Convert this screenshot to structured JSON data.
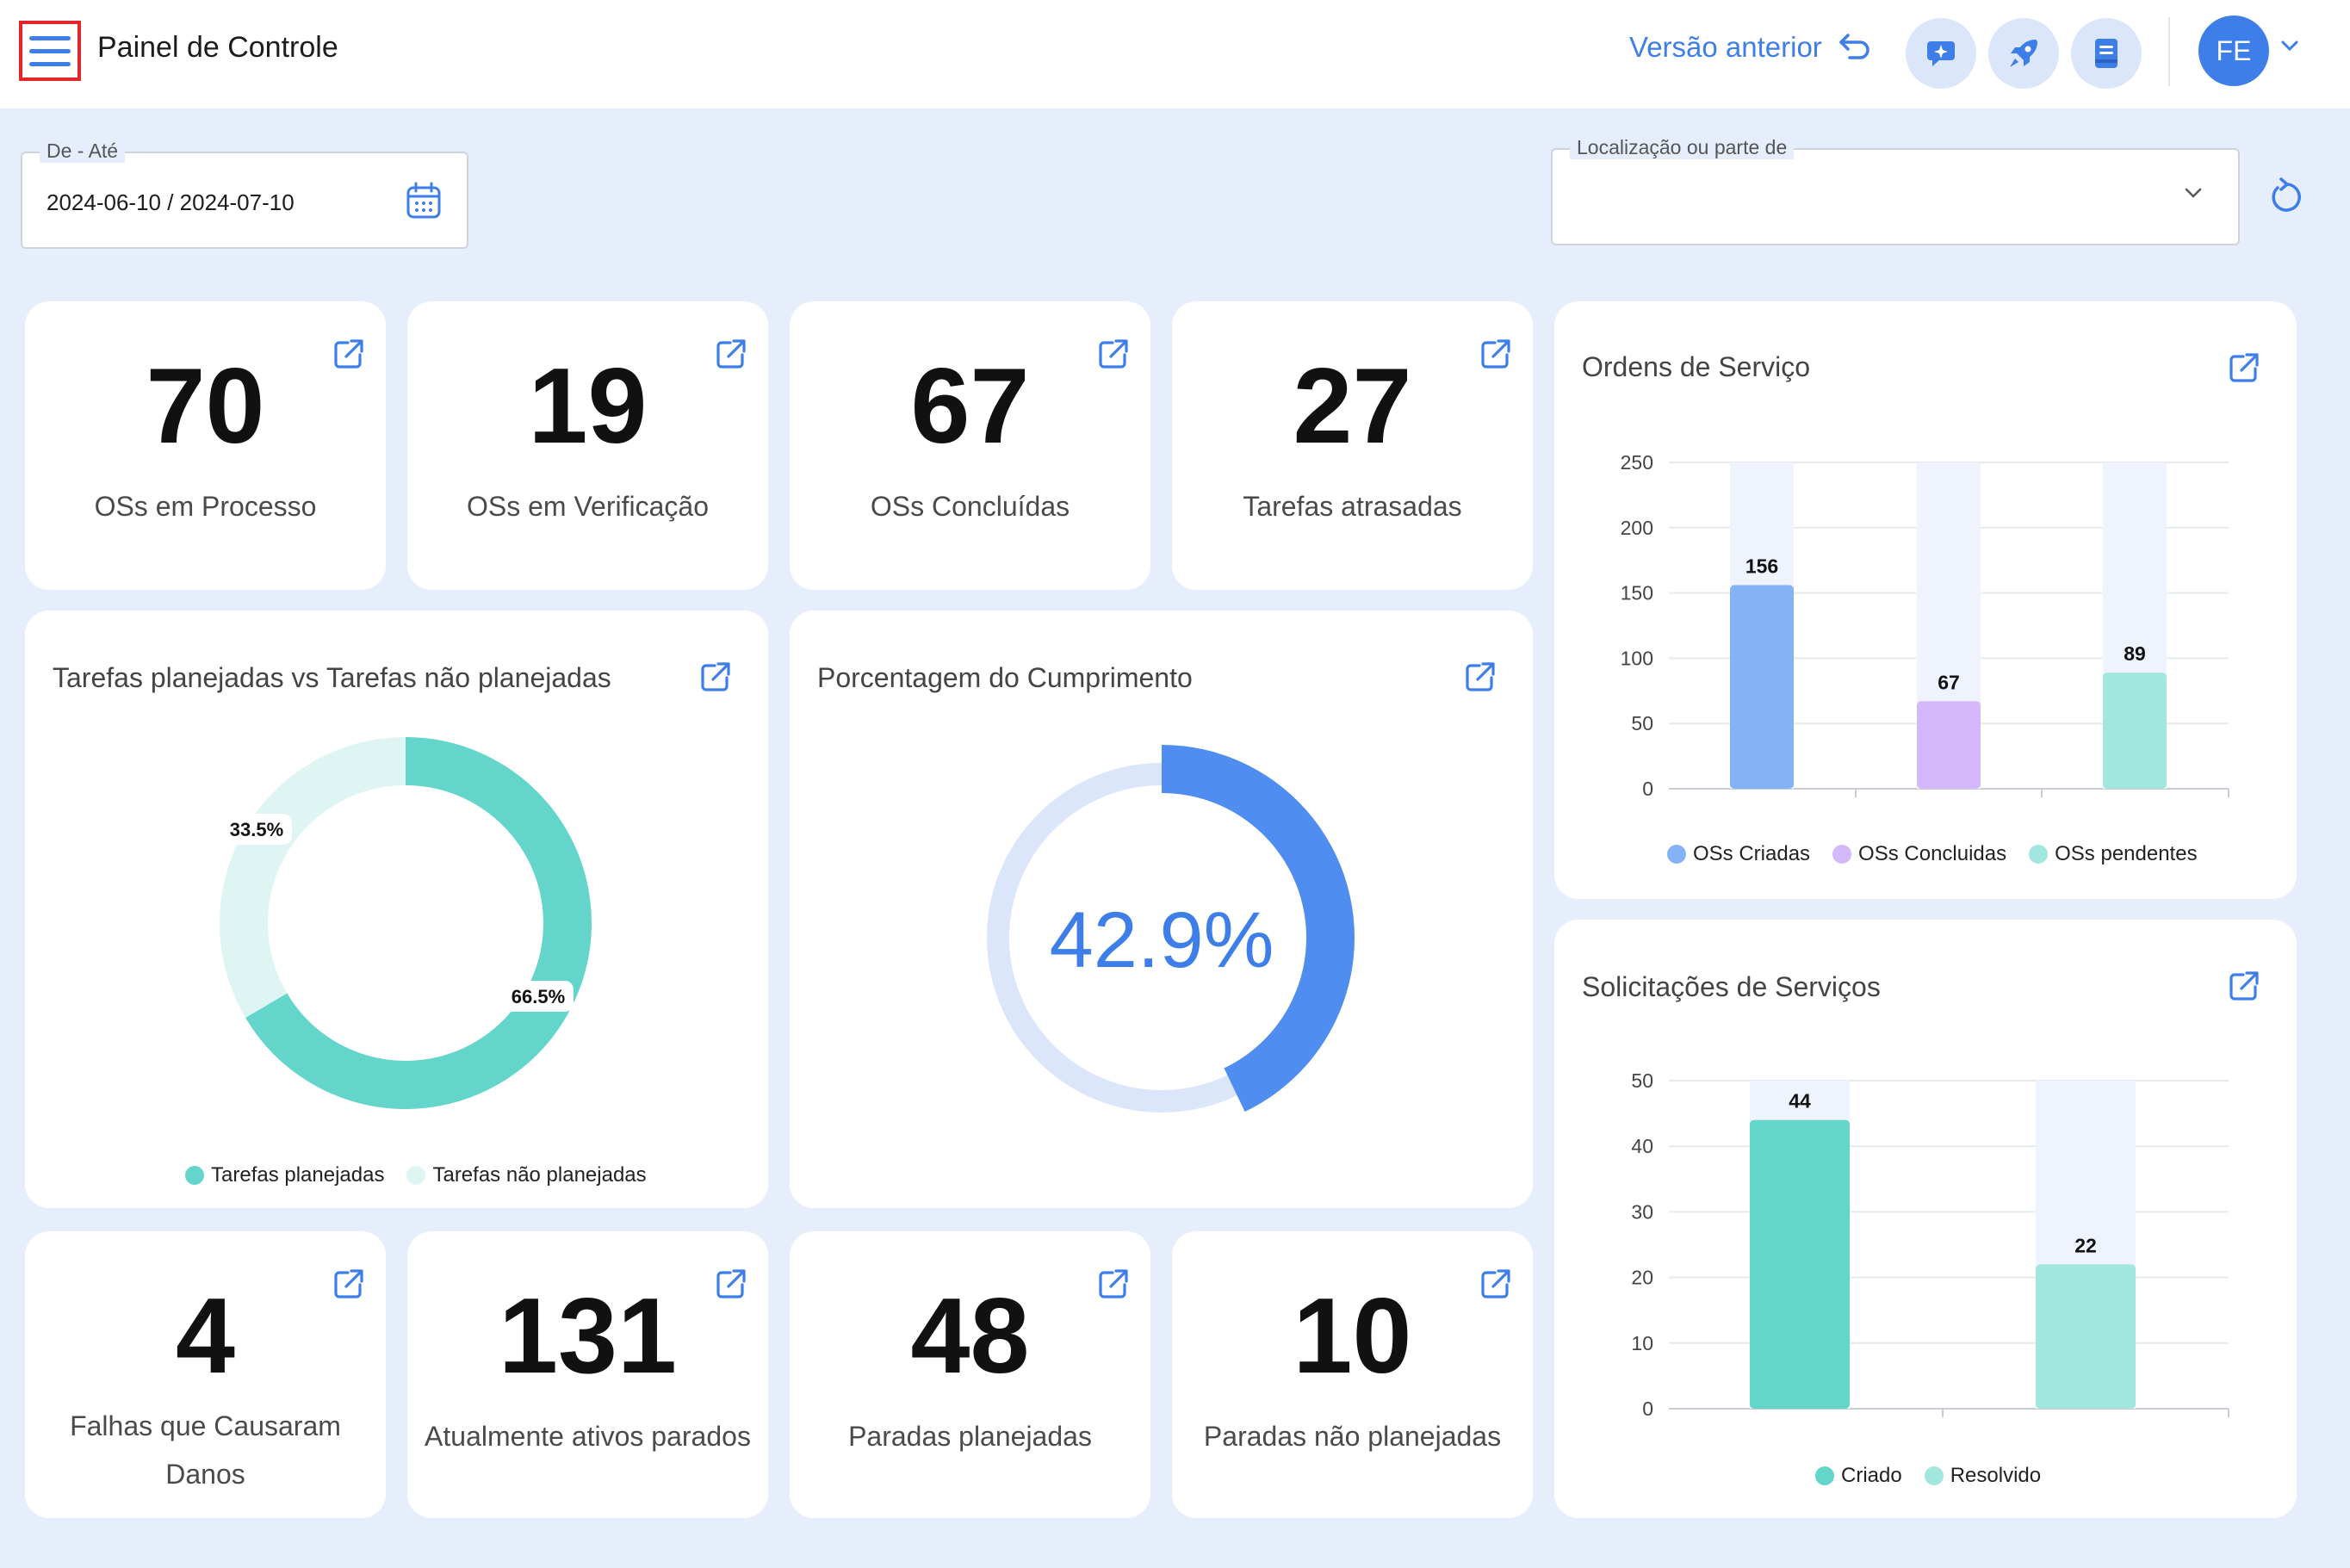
{
  "header": {
    "title": "Painel de Controle",
    "prev_version": "Versão anterior",
    "avatar_initials": "FE",
    "buttons": [
      "chat-sparkle-icon",
      "rocket-icon",
      "notes-icon"
    ]
  },
  "filters": {
    "date_legend": "De - Até",
    "date_value": "2024-06-10 / 2024-07-10",
    "location_legend": "Localização ou parte de",
    "location_value": ""
  },
  "kpis_top": [
    {
      "value": "70",
      "label": "OSs em Processo"
    },
    {
      "value": "19",
      "label": "OSs em Verificação"
    },
    {
      "value": "67",
      "label": "OSs Concluídas"
    },
    {
      "value": "27",
      "label": "Tarefas atrasadas"
    }
  ],
  "kpis_bottom": [
    {
      "value": "4",
      "label": "Falhas que Causaram Danos"
    },
    {
      "value": "131",
      "label": "Atualmente ativos parados"
    },
    {
      "value": "48",
      "label": "Paradas planejadas"
    },
    {
      "value": "10",
      "label": "Paradas não planejadas"
    }
  ],
  "donut": {
    "title": "Tarefas planejadas vs Tarefas não planejadas",
    "legend": [
      "Tarefas planejadas",
      "Tarefas não planejadas"
    ],
    "label_planned": "66.5%",
    "label_unplanned": "33.5%"
  },
  "gauge": {
    "title": "Porcentagem do Cumprimento",
    "value_text": "42.9%"
  },
  "orders_chart": {
    "title": "Ordens de Serviço"
  },
  "requests_chart": {
    "title": "Solicitações de Serviços"
  },
  "colors": {
    "accent": "#3d7ee8",
    "teal": "#63d5cb",
    "teal_light": "#dff5f3",
    "blue_bar": "#84b2f6",
    "purple_bar": "#d5b8fb",
    "mint_bar": "#a3e6de",
    "track": "#eef3fd"
  },
  "chart_data": [
    {
      "type": "pie",
      "title": "Tarefas planejadas vs Tarefas não planejadas",
      "categories": [
        "Tarefas planejadas",
        "Tarefas não planejadas"
      ],
      "values": [
        66.5,
        33.5
      ],
      "legend": "bottom"
    },
    {
      "type": "pie",
      "title": "Porcentagem do Cumprimento",
      "categories": [
        "Cumprimento"
      ],
      "values": [
        42.9
      ]
    },
    {
      "type": "bar",
      "title": "Ordens de Serviço",
      "categories": [
        "OSs Criadas",
        "OSs Concluidas",
        "OSs pendentes"
      ],
      "values": [
        156,
        67,
        89
      ],
      "ylim": [
        0,
        250
      ],
      "yticks": [
        0,
        50,
        100,
        150,
        200,
        250
      ],
      "legend": "bottom",
      "grid": true
    },
    {
      "type": "bar",
      "title": "Solicitações de Serviços",
      "categories": [
        "Criado",
        "Resolvido"
      ],
      "values": [
        44,
        22
      ],
      "ylim": [
        0,
        50
      ],
      "yticks": [
        0,
        10,
        20,
        30,
        40,
        50
      ],
      "legend": "bottom",
      "grid": true
    }
  ]
}
